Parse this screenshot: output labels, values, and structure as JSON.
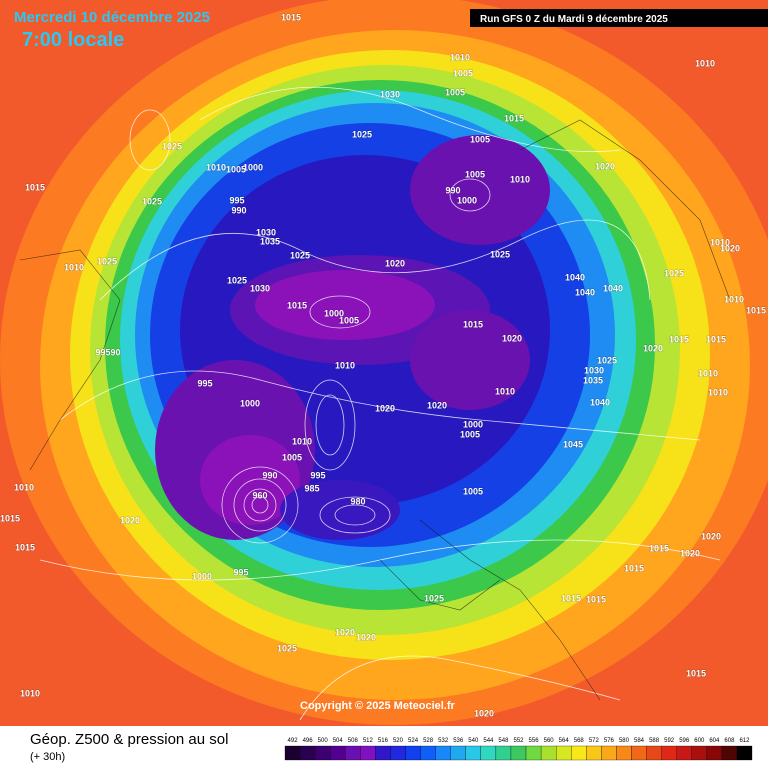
{
  "header": {
    "date": "Mercredi 10 décembre 2025",
    "time": "7:00 locale",
    "run": "Run GFS 0 Z du Mardi 9 décembre 2025"
  },
  "copyright": "Copyright © 2025 Meteociel.fr",
  "footer": {
    "title": "Géop. Z500 & pression au sol",
    "lead": "(+ 30h)"
  },
  "legend": {
    "ticks": [
      492,
      496,
      500,
      504,
      508,
      512,
      516,
      520,
      524,
      528,
      532,
      536,
      540,
      544,
      548,
      552,
      556,
      560,
      564,
      568,
      572,
      576,
      580,
      584,
      588,
      592,
      596,
      600,
      604,
      608,
      612
    ]
  },
  "pressure_labels": [
    "1015",
    "1010",
    "1005",
    "1005",
    "1030",
    "1010",
    "1025",
    "1015",
    "1005",
    "1025",
    "1010",
    "1005",
    "1000",
    "1020",
    "1005",
    "1010",
    "990",
    "1000",
    "1015",
    "1025",
    "995",
    "990",
    "1030",
    "1035",
    "1025",
    "1020",
    "1025",
    "1040",
    "1040",
    "1040",
    "1010",
    "1020",
    "1025",
    "1025",
    "1030",
    "1010",
    "1025",
    "1015",
    "1000",
    "1005",
    "1015",
    "1020",
    "1010",
    "1015",
    "1020",
    "1015",
    "1015",
    "99590",
    "1025",
    "1030",
    "1035",
    "1010",
    "1010",
    "995",
    "1000",
    "1020",
    "1020",
    "1010",
    "1040",
    "1010",
    "1000",
    "1005",
    "1045",
    "1010",
    "1005",
    "1010",
    "1015",
    "995",
    "990",
    "985",
    "960",
    "980",
    "1005",
    "1020",
    "1015",
    "1020",
    "1020",
    "1015",
    "1015",
    "1000",
    "995",
    "1025",
    "1015",
    "1015",
    "1020",
    "1020",
    "1025",
    "1015",
    "1010",
    "1020"
  ]
}
